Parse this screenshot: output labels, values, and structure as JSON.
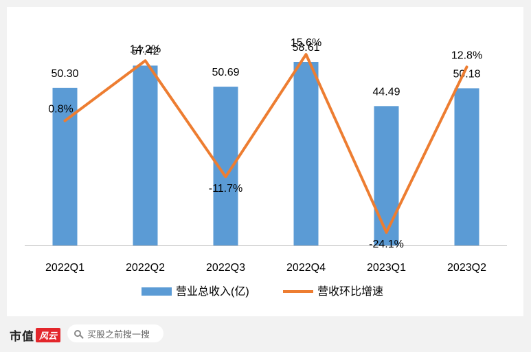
{
  "chart_data": {
    "type": "bar+line",
    "categories": [
      "2022Q1",
      "2022Q2",
      "2022Q3",
      "2022Q4",
      "2023Q1",
      "2023Q2"
    ],
    "series": [
      {
        "name": "营业总收入(亿)",
        "type": "bar",
        "values": [
          50.3,
          57.42,
          50.69,
          58.61,
          44.49,
          50.18
        ],
        "labels": [
          "50.30",
          "57.42",
          "50.69",
          "58.61",
          "44.49",
          "50.18"
        ],
        "color": "#5b9bd5"
      },
      {
        "name": "营收环比增速",
        "type": "line",
        "values": [
          0.8,
          14.2,
          -11.7,
          15.6,
          -24.1,
          12.8
        ],
        "labels": [
          "0.8%",
          "14.2%",
          "-11.7%",
          "15.6%",
          "-24.1%",
          "12.8%"
        ],
        "color": "#ed7d31"
      }
    ],
    "bar_axis_range": [
      0,
      63
    ],
    "line_axis_range": [
      -27,
      17
    ],
    "grid": false,
    "legend_position": "bottom"
  },
  "footer": {
    "brand": "市值",
    "brand_logo": "风云",
    "search_placeholder": "买股之前搜一搜",
    "search_icon": "search-icon"
  }
}
